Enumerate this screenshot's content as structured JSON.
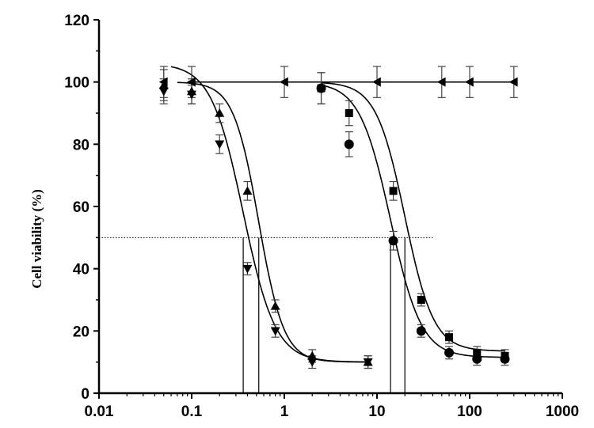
{
  "chart_data": {
    "type": "scatter",
    "title": "",
    "xlabel": "",
    "ylabel": "Cell viability (%)",
    "x_scale": "log",
    "xlim": [
      0.01,
      1000
    ],
    "ylim": [
      0,
      120
    ],
    "x_ticks": [
      0.01,
      0.1,
      1,
      10,
      100,
      1000
    ],
    "x_tick_labels": [
      "0.01",
      "0.1",
      "1",
      "10",
      "100",
      "1000"
    ],
    "y_ticks": [
      0,
      20,
      40,
      60,
      80,
      100,
      120
    ],
    "y_tick_labels": [
      "0",
      "20",
      "40",
      "60",
      "80",
      "100",
      "120"
    ],
    "legend": "none",
    "grid": false,
    "reference_line_y": 50,
    "reference_line_x_range": [
      0.01,
      40
    ],
    "series": [
      {
        "marker": "triangle-left",
        "x": [
          0.05,
          0.1,
          1,
          10,
          50,
          100,
          300
        ],
        "y": [
          100,
          100,
          100,
          100,
          100,
          100,
          100
        ],
        "err": [
          5,
          5,
          5,
          5,
          5,
          5,
          5
        ],
        "fit": {
          "bottom": 100,
          "top": 100,
          "ec50": 1,
          "hill": 1,
          "xrange": [
            0.1,
            300
          ]
        }
      },
      {
        "marker": "triangle-up",
        "x": [
          0.05,
          0.1,
          0.2,
          0.4,
          0.8,
          2,
          8
        ],
        "y": [
          99,
          97,
          90,
          65,
          28,
          12,
          10
        ],
        "err": [
          5,
          4,
          3,
          3,
          2,
          2,
          2
        ],
        "fit": {
          "bottom": 10,
          "top": 100,
          "ec50": 0.53,
          "hill": 3.2,
          "xrange": [
            0.07,
            8
          ]
        },
        "ec50": 0.53
      },
      {
        "marker": "triangle-down",
        "x": [
          0.05,
          0.1,
          0.2,
          0.4,
          0.8,
          2,
          8
        ],
        "y": [
          97,
          96,
          80,
          40,
          20,
          10,
          10
        ],
        "err": [
          4,
          3,
          3,
          2,
          2,
          2,
          2
        ],
        "fit": {
          "bottom": 10,
          "top": 106,
          "ec50": 0.36,
          "hill": 2.5,
          "xrange": [
            0.06,
            8
          ]
        },
        "ec50": 0.36
      },
      {
        "marker": "square",
        "x": [
          2.5,
          5,
          15,
          30,
          60,
          120,
          240
        ],
        "y": [
          98,
          90,
          65,
          30,
          18,
          13,
          12
        ],
        "err": [
          5,
          4,
          3,
          2,
          2,
          2,
          2
        ],
        "fit": {
          "bottom": 13.5,
          "top": 100,
          "ec50": 20,
          "hill": 2.8,
          "xrange": [
            2.5,
            240
          ]
        },
        "ec50": 20
      },
      {
        "marker": "circle",
        "x": [
          2.5,
          5,
          15,
          30,
          60,
          120,
          240
        ],
        "y": [
          98,
          80,
          49,
          20,
          13,
          11,
          11
        ],
        "err": [
          5,
          4,
          3,
          2,
          2,
          2,
          2
        ],
        "fit": {
          "bottom": 11.5,
          "top": 100,
          "ec50": 14,
          "hill": 2.6,
          "xrange": [
            2.5,
            240
          ]
        },
        "ec50": 14
      }
    ]
  }
}
